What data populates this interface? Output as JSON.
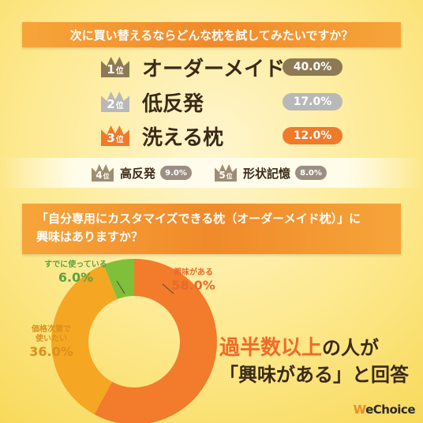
{
  "question1": "次に買い替えるならどんな枕を試してみたいですか？",
  "rank_unit": "位",
  "top_ranks": [
    {
      "rank": "1",
      "name": "オーダーメイド",
      "value": "40.0%",
      "color": "#8d7a55"
    },
    {
      "rank": "2",
      "name": "低反発",
      "value": "17.0%",
      "color": "#b9b8b8"
    },
    {
      "rank": "3",
      "name": "洗える枕",
      "value": "12.0%",
      "color": "#f07a2a"
    }
  ],
  "minor_ranks": [
    {
      "rank": "4",
      "name": "高反発",
      "value": "9.0%"
    },
    {
      "rank": "5",
      "name": "形状記憶",
      "value": "8.0%"
    }
  ],
  "question2_line1": "「自分専用にカスタマイズできる枕（オーダーメイド枕）」に",
  "question2_line2": "興味はありますか？",
  "chart_data": {
    "type": "pie",
    "categories": [
      "興味がある",
      "価格次第で使いたい",
      "すでに使っている"
    ],
    "values": [
      58.0,
      36.0,
      6.0
    ],
    "value_labels": [
      "58.0%",
      "36.0%",
      "6.0%"
    ],
    "colors": [
      "#f27b2c",
      "#f5a623",
      "#7fbf3a"
    ]
  },
  "labels": {
    "interested": {
      "title": "興味がある",
      "value": "58.0%"
    },
    "price_line1": "価格次第で",
    "price_line2": "使いたい",
    "price_value": "36.0%",
    "already": {
      "title": "すでに使っている",
      "value": "6.0%"
    }
  },
  "message": {
    "big": "過半数以上",
    "rest1": "の人が",
    "line2": "「興味がある」と回答"
  },
  "logo": {
    "mark": "W",
    "text": "eChoice"
  }
}
